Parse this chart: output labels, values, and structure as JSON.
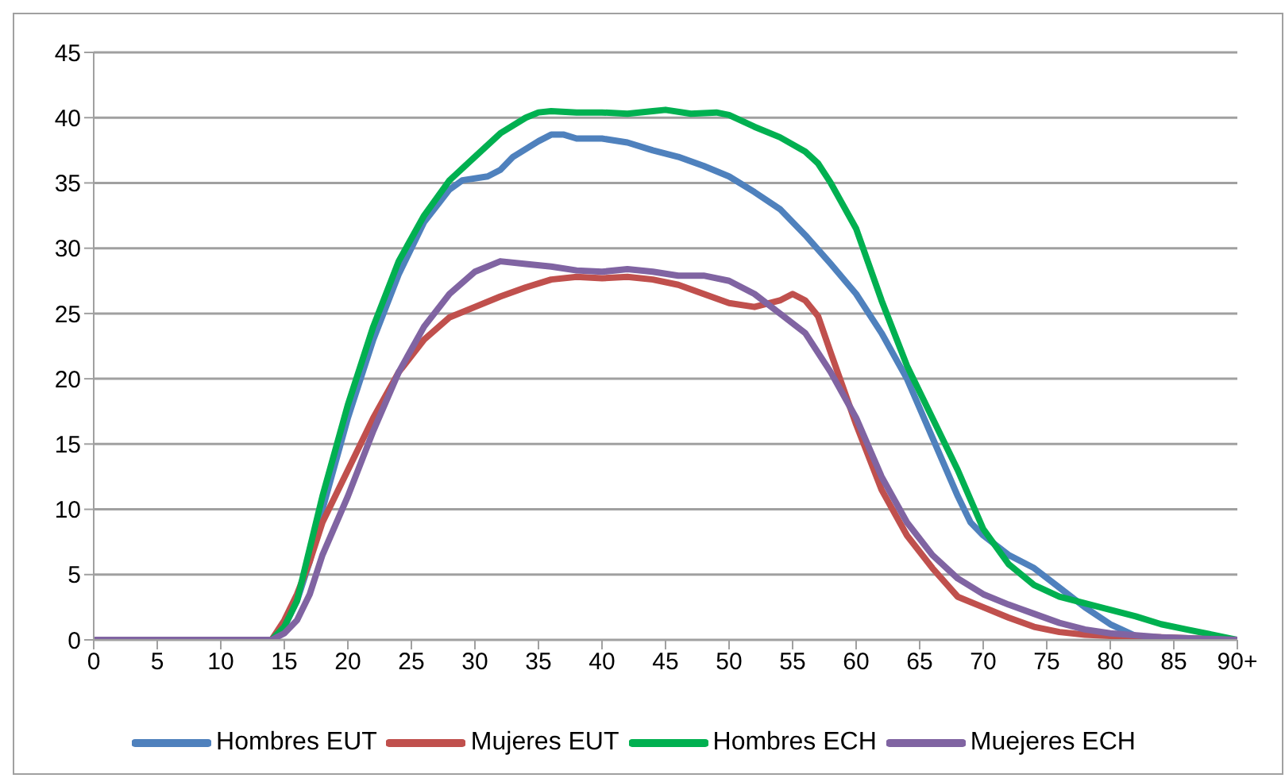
{
  "chart_data": {
    "type": "line",
    "xlim": [
      0,
      90
    ],
    "xticks": [
      0,
      5,
      10,
      15,
      20,
      25,
      30,
      35,
      40,
      45,
      50,
      55,
      60,
      65,
      70,
      75,
      80,
      85,
      {
        "value": 90,
        "label": "90+"
      }
    ],
    "ylim": [
      0,
      45
    ],
    "yticks": [
      0,
      5,
      10,
      15,
      20,
      25,
      30,
      35,
      40,
      45
    ],
    "grid": "y",
    "legend": "bottom",
    "marker": "none",
    "line_style": "solid",
    "series": [
      {
        "name": "Hombres EUT",
        "color": "#4f81bd",
        "x": [
          0,
          14,
          15,
          16,
          17,
          18,
          20,
          22,
          24,
          26,
          28,
          29,
          31,
          32,
          33,
          35,
          36,
          37,
          38,
          40,
          42,
          44,
          46,
          48,
          50,
          52,
          54,
          56,
          58,
          60,
          62,
          64,
          66,
          68,
          69,
          70,
          72,
          74,
          76,
          78,
          80,
          82,
          84,
          90
        ],
        "values": [
          0,
          0,
          1,
          3,
          6,
          10,
          17,
          23,
          28,
          32,
          34.5,
          35.2,
          35.5,
          36,
          37,
          38.2,
          38.7,
          38.7,
          38.4,
          38.4,
          38.1,
          37.5,
          37,
          36.3,
          35.5,
          34.3,
          33,
          31,
          28.8,
          26.5,
          23.5,
          20,
          15.5,
          11,
          9,
          8,
          6.5,
          5.5,
          4,
          2.5,
          1.2,
          0.3,
          0,
          0
        ]
      },
      {
        "name": "Mujeres EUT",
        "color": "#c0504d",
        "x": [
          0,
          14,
          15,
          16,
          17,
          18,
          20,
          22,
          24,
          26,
          28,
          30,
          32,
          34,
          36,
          38,
          40,
          42,
          44,
          46,
          48,
          50,
          52,
          54,
          55,
          56,
          57,
          58,
          60,
          62,
          64,
          66,
          68,
          70,
          72,
          74,
          76,
          78,
          80,
          84,
          90
        ],
        "values": [
          0,
          0,
          1.5,
          3.5,
          6,
          9,
          13,
          17,
          20.5,
          23,
          24.7,
          25.5,
          26.3,
          27,
          27.6,
          27.8,
          27.7,
          27.8,
          27.6,
          27.2,
          26.5,
          25.8,
          25.5,
          26,
          26.5,
          26,
          24.8,
          22,
          16.5,
          11.5,
          8,
          5.5,
          3.3,
          2.5,
          1.7,
          1,
          0.6,
          0.4,
          0.3,
          0.2,
          0
        ]
      },
      {
        "name": "Hombres ECH",
        "color": "#00b050",
        "x": [
          0,
          14,
          15,
          16,
          17,
          18,
          20,
          22,
          24,
          26,
          28,
          30,
          32,
          34,
          35,
          36,
          38,
          40,
          42,
          44,
          45,
          47,
          49,
          50,
          52,
          54,
          56,
          57,
          58,
          60,
          62,
          64,
          66,
          68,
          70,
          72,
          74,
          76,
          78,
          80,
          82,
          84,
          86,
          88,
          90
        ],
        "values": [
          0,
          0,
          1,
          3,
          7,
          11,
          18,
          24,
          29,
          32.5,
          35.2,
          37,
          38.8,
          40,
          40.4,
          40.5,
          40.4,
          40.4,
          40.3,
          40.5,
          40.6,
          40.3,
          40.4,
          40.2,
          39.3,
          38.5,
          37.4,
          36.5,
          35,
          31.5,
          26,
          21,
          17,
          13,
          8.5,
          5.8,
          4.2,
          3.3,
          2.8,
          2.3,
          1.8,
          1.2,
          0.8,
          0.4,
          0
        ]
      },
      {
        "name": "Muejeres ECH",
        "color": "#8064a2",
        "x": [
          0,
          14,
          15,
          16,
          17,
          18,
          20,
          22,
          24,
          26,
          28,
          30,
          32,
          34,
          36,
          38,
          40,
          42,
          44,
          46,
          48,
          50,
          52,
          54,
          56,
          58,
          60,
          62,
          64,
          66,
          68,
          70,
          72,
          74,
          76,
          78,
          80,
          84,
          90
        ],
        "values": [
          0,
          0,
          0.5,
          1.5,
          3.5,
          6.5,
          11,
          16,
          20.5,
          24,
          26.5,
          28.2,
          29,
          28.8,
          28.6,
          28.3,
          28.2,
          28.4,
          28.2,
          27.9,
          27.9,
          27.5,
          26.5,
          25,
          23.5,
          20.5,
          17,
          12.5,
          9,
          6.5,
          4.7,
          3.5,
          2.7,
          2,
          1.3,
          0.8,
          0.5,
          0.2,
          0
        ]
      }
    ]
  }
}
